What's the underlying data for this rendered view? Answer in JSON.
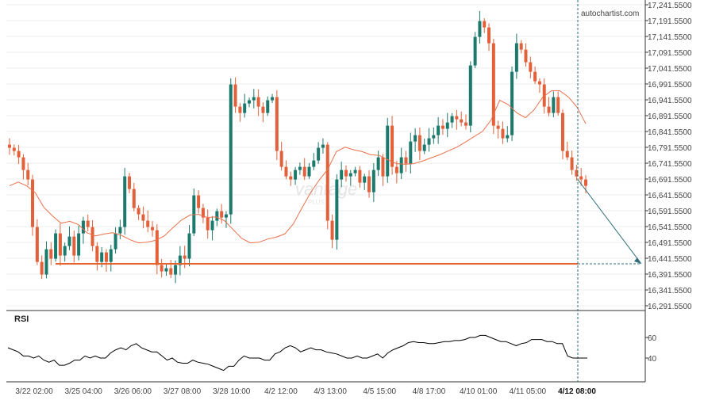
{
  "branding": {
    "watermark_text": "autochartist.com",
    "logo_text": "vantage",
    "logo_subtext": "PLUS"
  },
  "colors": {
    "bull": "#1c7a6d",
    "bear": "#e2613a",
    "ma": "#e8714c",
    "level": "#e8622e",
    "arrow": "#2f6d78",
    "axis_line": "#333333",
    "grid": "#eeeeee",
    "text": "#444444",
    "rsi": "#000000"
  },
  "chart_data": [
    {
      "type": "candlestick",
      "title": "",
      "price_axis": {
        "ticks": [
          "17,241.5500",
          "17,191.5500",
          "17,141.5500",
          "17,091.5500",
          "17,041.5500",
          "16,991.5500",
          "16,941.5500",
          "16,891.5500",
          "16,841.5500",
          "16,791.5500",
          "16,741.5500",
          "16,691.5500",
          "16,641.5500",
          "16,591.5500",
          "16,541.5500",
          "16,491.5500",
          "16,441.5500",
          "16,391.5500",
          "16,341.5500",
          "16,291.5500"
        ],
        "range": [
          16270,
          17250
        ]
      },
      "time_axis": {
        "labels": [
          "3/22 02:00",
          "3/25 04:00",
          "3/26 06:00",
          "3/27 08:00",
          "3/28 10:00",
          "4/2 12:00",
          "4/3 13:00",
          "4/5 15:00",
          "4/8 17:00",
          "4/10 01:00",
          "4/11 05:00",
          "4/12 08:00"
        ],
        "highlighted_label": "4/12 08:00"
      },
      "close_path": [
        16790,
        16780,
        16760,
        16720,
        16690,
        16540,
        16430,
        16390,
        16470,
        16440,
        16520,
        16450,
        16480,
        16510,
        16450,
        16520,
        16560,
        16540,
        16480,
        16430,
        16460,
        16430,
        16470,
        16520,
        16540,
        16700,
        16660,
        16600,
        16580,
        16560,
        16540,
        16530,
        16420,
        16400,
        16410,
        16390,
        16420,
        16450,
        16440,
        16520,
        16640,
        16600,
        16570,
        16530,
        16560,
        16590,
        16570,
        16580,
        16990,
        16920,
        16900,
        16930,
        16940,
        16950,
        16920,
        16900,
        16940,
        16950,
        16780,
        16730,
        16700,
        16690,
        16720,
        16730,
        16700,
        16730,
        16750,
        16790,
        16800,
        16560,
        16500,
        16690,
        16720,
        16700,
        16710,
        16720,
        16680,
        16700,
        16650,
        16720,
        16760,
        16700,
        16860,
        16730,
        16710,
        16760,
        16740,
        16810,
        16830,
        16780,
        16800,
        16820,
        16830,
        16860,
        16850,
        16870,
        16890,
        16880,
        16870,
        16860,
        17050,
        17140,
        17190,
        17170,
        17120,
        16860,
        16850,
        16820,
        16830,
        17030,
        17120,
        17100,
        17060,
        17030,
        17000,
        16990,
        16920,
        16900,
        16950,
        16900,
        16780,
        16760,
        16720,
        16700,
        16690,
        16670
      ],
      "moving_average": [
        16670,
        16682,
        16670,
        16648,
        16602,
        16575,
        16552,
        16558,
        16548,
        16522,
        16512,
        16518,
        16522,
        16514,
        16500,
        16490,
        16492,
        16498,
        16512,
        16538,
        16562,
        16578,
        16580,
        16570,
        16572,
        16560,
        16532,
        16504,
        16490,
        16492,
        16502,
        16508,
        16518,
        16550,
        16600,
        16648,
        16688,
        16722,
        16778,
        16792,
        16784,
        16778,
        16768,
        16766,
        16752,
        16740,
        16738,
        16740,
        16748,
        16758,
        16768,
        16780,
        16792,
        16808,
        16825,
        16842,
        16878,
        16940,
        16926,
        16900,
        16885,
        16910,
        16950,
        16970,
        16970,
        16950,
        16918,
        16866
      ],
      "resistance_level": {
        "price": 16424
      },
      "forecast_arrow": {
        "from_price": 16690,
        "to_price": 16424
      }
    },
    {
      "type": "line",
      "title": "RSI",
      "y_ticks": [
        "60",
        "40"
      ],
      "range": [
        20,
        80
      ],
      "values": [
        50,
        48,
        46,
        42,
        42,
        40,
        42,
        38,
        36,
        38,
        33,
        33,
        35,
        38,
        38,
        42,
        40,
        42,
        40,
        40,
        45,
        48,
        50,
        48,
        52,
        54,
        50,
        48,
        46,
        46,
        42,
        38,
        40,
        36,
        35,
        35,
        38,
        36,
        35,
        34,
        32,
        30,
        28,
        32,
        32,
        38,
        42,
        40,
        40,
        40,
        38,
        38,
        44,
        46,
        50,
        52,
        50,
        46,
        48,
        50,
        48,
        48,
        46,
        45,
        44,
        42,
        40,
        40,
        42,
        40,
        40,
        42,
        44,
        40,
        45,
        48,
        50,
        52,
        55,
        56,
        55,
        55,
        54,
        54,
        55,
        56,
        56,
        57,
        57,
        58,
        60,
        60,
        62,
        62,
        60,
        58,
        56,
        56,
        54,
        52,
        54,
        55,
        58,
        58,
        58,
        56,
        56,
        54,
        54,
        42,
        40,
        40
      ]
    }
  ]
}
